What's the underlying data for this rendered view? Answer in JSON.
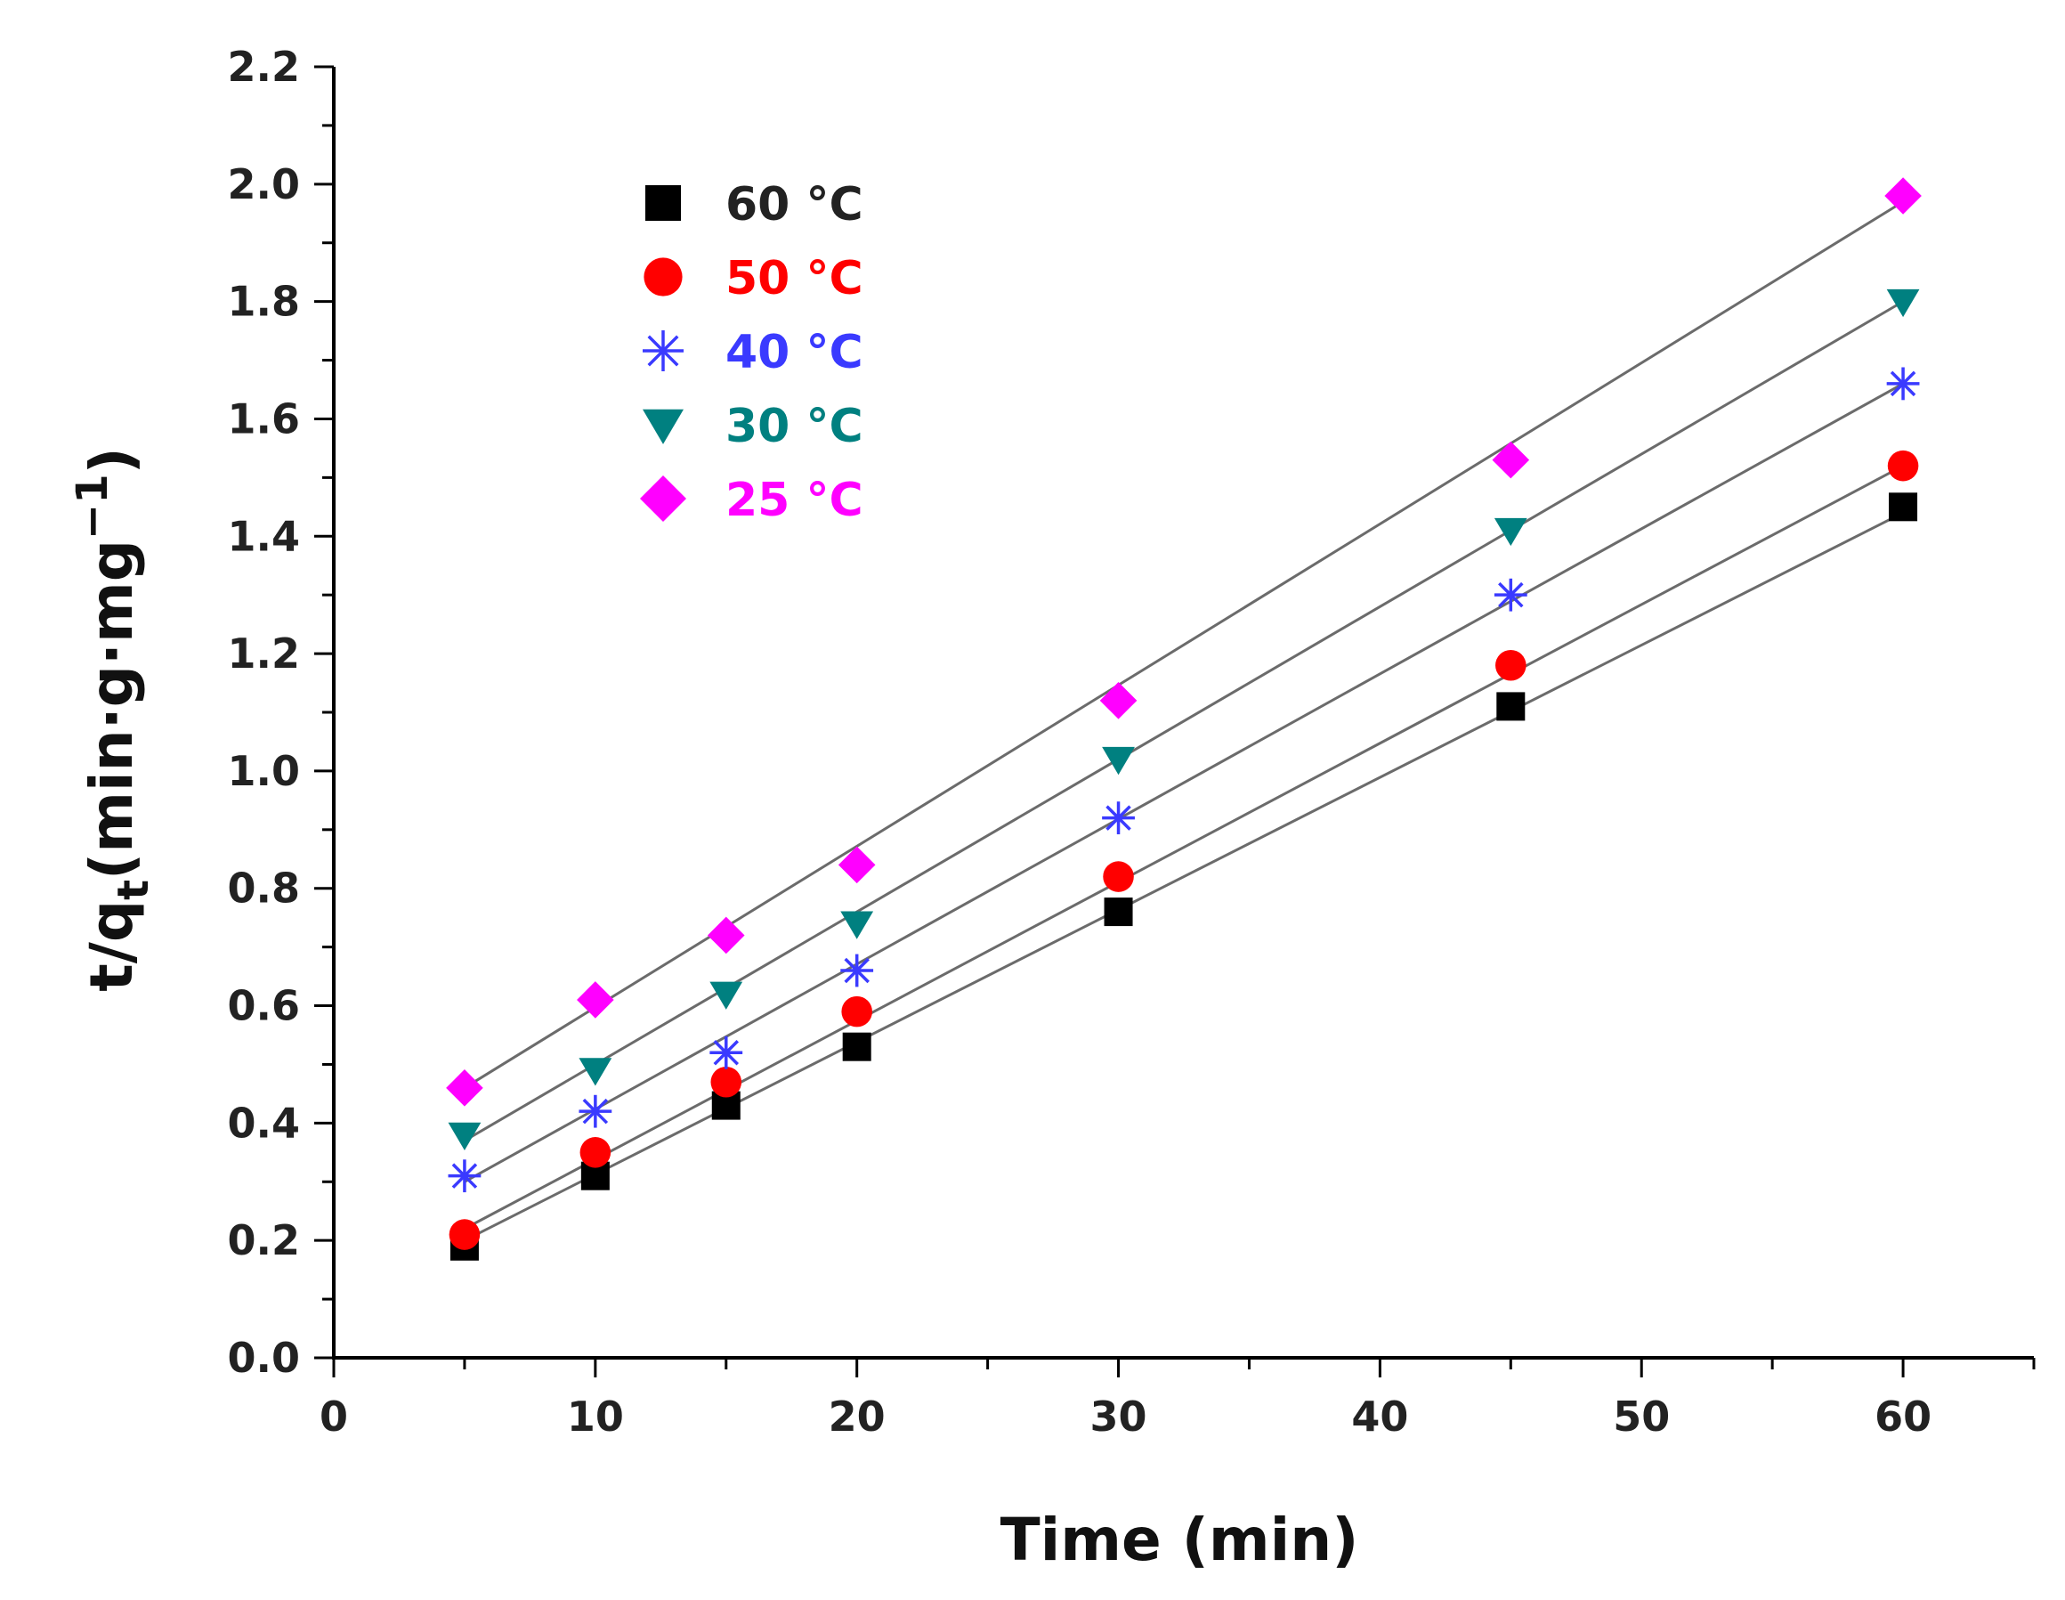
{
  "chart_data": {
    "type": "scatter",
    "title": "",
    "xlabel": "Time (min)",
    "ylabel_main": "t/q",
    "ylabel_sub": "t",
    "ylabel_unit": "(min·g·mg",
    "ylabel_sup": "−1",
    "ylabel_close": ")",
    "xlim": [
      0,
      65
    ],
    "ylim": [
      0,
      2.2
    ],
    "xticks": [
      "0",
      "10",
      "20",
      "30",
      "40",
      "50",
      "60"
    ],
    "yticks": [
      "0.0",
      "0.2",
      "0.4",
      "0.6",
      "0.8",
      "1.0",
      "1.2",
      "1.4",
      "1.6",
      "1.8",
      "2.0",
      "2.2"
    ],
    "legend_position": "top-left",
    "grid": false,
    "x": [
      5,
      10,
      15,
      20,
      30,
      45,
      60
    ],
    "series": [
      {
        "name": "60 °C",
        "marker": "square",
        "color": "#000000",
        "values": [
          0.19,
          0.31,
          0.43,
          0.53,
          0.76,
          1.11,
          1.45
        ],
        "fit": [
          0.2,
          1.44
        ]
      },
      {
        "name": "50 °C",
        "marker": "circle",
        "color": "#ff0000",
        "values": [
          0.21,
          0.35,
          0.47,
          0.59,
          0.82,
          1.18,
          1.52
        ],
        "fit": [
          0.22,
          1.52
        ]
      },
      {
        "name": "40 °C",
        "marker": "star",
        "color": "#3a3aff",
        "values": [
          0.31,
          0.42,
          0.52,
          0.66,
          0.92,
          1.3,
          1.66
        ],
        "fit": [
          0.3,
          1.66
        ]
      },
      {
        "name": "30 °C",
        "marker": "triangle-down",
        "color": "#008080",
        "values": [
          0.38,
          0.49,
          0.62,
          0.74,
          1.02,
          1.41,
          1.8
        ],
        "fit": [
          0.37,
          1.8
        ]
      },
      {
        "name": "25 °C",
        "marker": "diamond",
        "color": "#ff00ff",
        "values": [
          0.46,
          0.61,
          0.72,
          0.84,
          1.12,
          1.53,
          1.98
        ],
        "fit": [
          0.46,
          1.97
        ]
      }
    ]
  }
}
